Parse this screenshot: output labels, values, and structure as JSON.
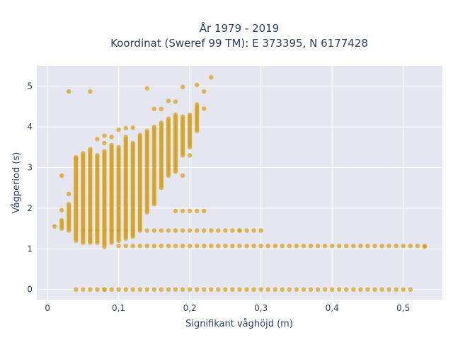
{
  "chart_data": {
    "type": "scatter",
    "title": "År 1979 - 2019",
    "subtitle": "Koordinat (Sweref 99 TM): E 373395, N 6177428",
    "xlabel": "Signifikant våghöjd (m)",
    "ylabel": "Vågperiod (s)",
    "xlim": [
      -0.015,
      0.555
    ],
    "ylim": [
      -0.25,
      5.5
    ],
    "x_ticks": [
      0,
      0.1,
      0.2,
      0.3,
      0.4,
      0.5
    ],
    "x_tick_labels": [
      "0",
      "0,1",
      "0,2",
      "0,3",
      "0,4",
      "0,5"
    ],
    "y_ticks": [
      0,
      1,
      2,
      3,
      4,
      5
    ],
    "y_tick_labels": [
      "0",
      "1",
      "2",
      "3",
      "4",
      "5"
    ],
    "grid": true,
    "colors": {
      "marker": "#d4a017",
      "plot_bg": "#e5e6ef",
      "grid": "#ffffff"
    },
    "series": [
      {
        "columns": [
          {
            "x": 0.02,
            "y0": 1.5,
            "y1": 1.7
          },
          {
            "x": 0.03,
            "y0": 1.45,
            "y1": 2.1
          },
          {
            "x": 0.04,
            "y0": 1.2,
            "y1": 3.25
          },
          {
            "x": 0.05,
            "y0": 1.15,
            "y1": 3.35
          },
          {
            "x": 0.06,
            "y0": 1.15,
            "y1": 3.4
          },
          {
            "x": 0.07,
            "y0": 1.15,
            "y1": 3.3
          },
          {
            "x": 0.08,
            "y0": 1.1,
            "y1": 3.4
          },
          {
            "x": 0.09,
            "y0": 1.15,
            "y1": 3.55
          },
          {
            "x": 0.1,
            "y0": 1.2,
            "y1": 3.5
          },
          {
            "x": 0.11,
            "y0": 1.25,
            "y1": 3.75
          },
          {
            "x": 0.12,
            "y0": 1.3,
            "y1": 3.6
          },
          {
            "x": 0.13,
            "y0": 1.5,
            "y1": 3.8
          },
          {
            "x": 0.14,
            "y0": 1.9,
            "y1": 3.9
          },
          {
            "x": 0.15,
            "y0": 2.1,
            "y1": 4.0
          },
          {
            "x": 0.16,
            "y0": 2.5,
            "y1": 4.1
          },
          {
            "x": 0.17,
            "y0": 2.8,
            "y1": 4.2
          },
          {
            "x": 0.18,
            "y0": 2.9,
            "y1": 4.3
          },
          {
            "x": 0.19,
            "y0": 3.3,
            "y1": 4.25
          },
          {
            "x": 0.2,
            "y0": 3.5,
            "y1": 4.3
          },
          {
            "x": 0.21,
            "y0": 3.9,
            "y1": 4.55
          }
        ],
        "band_mid": {
          "x0": 0.05,
          "x1": 0.29,
          "y": 1.45
        },
        "band_low": {
          "x0": 0.1,
          "x1": 0.53,
          "y": 1.07
        },
        "band_zero": {
          "x0": 0.04,
          "x1": 0.5,
          "y": 0.0
        },
        "points": [
          [
            0.01,
            1.55
          ],
          [
            0.02,
            2.8
          ],
          [
            0.02,
            1.95
          ],
          [
            0.03,
            4.87
          ],
          [
            0.03,
            2.35
          ],
          [
            0.04,
            3.22
          ],
          [
            0.06,
            4.87
          ],
          [
            0.06,
            3.45
          ],
          [
            0.07,
            3.7
          ],
          [
            0.08,
            3.78
          ],
          [
            0.08,
            3.6
          ],
          [
            0.09,
            3.75
          ],
          [
            0.1,
            3.93
          ],
          [
            0.11,
            3.97
          ],
          [
            0.12,
            3.98
          ],
          [
            0.14,
            4.95
          ],
          [
            0.15,
            4.44
          ],
          [
            0.16,
            4.44
          ],
          [
            0.17,
            4.64
          ],
          [
            0.18,
            4.62
          ],
          [
            0.19,
            4.98
          ],
          [
            0.21,
            5.03
          ],
          [
            0.22,
            4.87
          ],
          [
            0.23,
            5.22
          ],
          [
            0.22,
            4.45
          ],
          [
            0.18,
            1.93
          ],
          [
            0.19,
            1.93
          ],
          [
            0.2,
            1.93
          ],
          [
            0.21,
            1.93
          ],
          [
            0.22,
            1.93
          ],
          [
            0.19,
            2.8
          ],
          [
            0.2,
            3.3
          ],
          [
            0.3,
            1.45
          ],
          [
            0.08,
            1.05
          ],
          [
            0.06,
            1.2
          ],
          [
            0.08,
            0.0
          ],
          [
            0.51,
            0.0
          ],
          [
            0.27,
            1.45
          ],
          [
            0.53,
            1.05
          ]
        ]
      }
    ]
  }
}
